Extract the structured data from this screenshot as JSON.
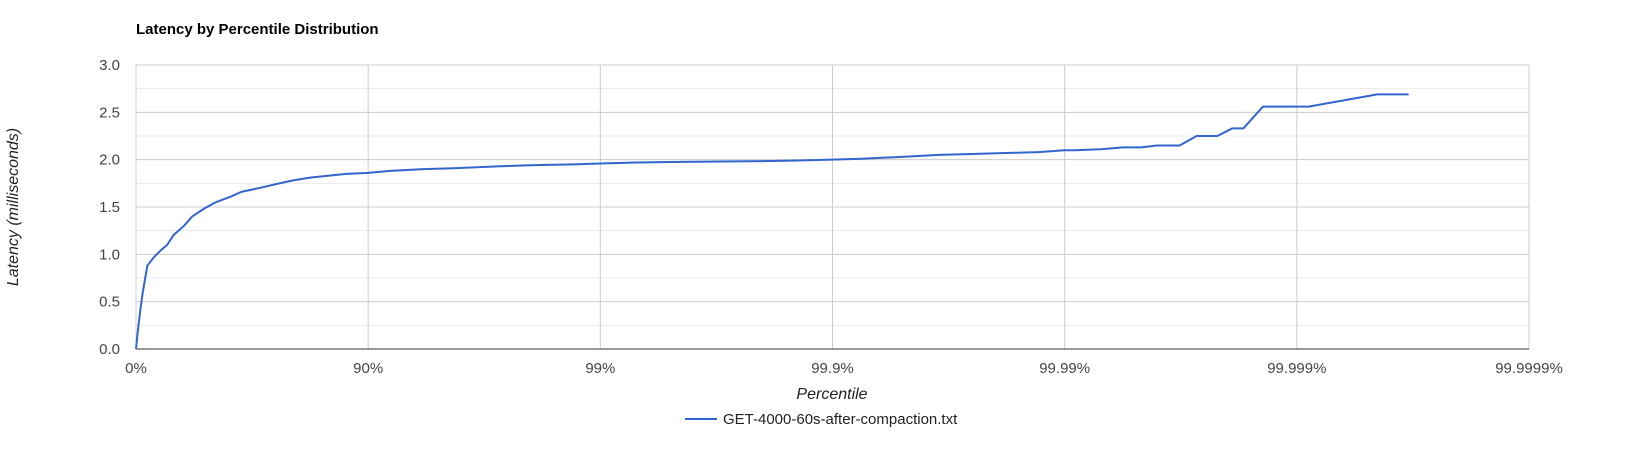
{
  "colors": {
    "series": "#3366cc",
    "major_grid": "#cccccc",
    "minor_grid": "#ebebeb",
    "baseline": "#333333"
  },
  "chart_data": {
    "type": "line",
    "title": "Latency by Percentile Distribution",
    "xlabel": "Percentile",
    "ylabel": "Latency (milliseconds)",
    "x_scale": "log10 of 1/(1 - percentile)",
    "x_ticks": [
      "0%",
      "90%",
      "99%",
      "99.9%",
      "99.99%",
      "99.999%",
      "99.9999%"
    ],
    "y_ticks": [
      "0.0",
      "0.5",
      "1.0",
      "1.5",
      "2.0",
      "2.5",
      "3.0"
    ],
    "ylim": [
      0,
      3
    ],
    "grid": true,
    "legend_position": "bottom",
    "series": [
      {
        "name": "GET-4000-60s-after-compaction.txt",
        "x_percentile": [
          "0%",
          "2.1%",
          "4.3%",
          "6.5%",
          "8.6%",
          "10.6%",
          "16.3%",
          "21.6%",
          "26.6%",
          "30.9%",
          "37.8%",
          "42.8%",
          "48.9%",
          "54.6%",
          "61.0%",
          "64.8%",
          "70.5%",
          "74.9%",
          "78.8%",
          "82.2%",
          "85.1%",
          "87.6%",
          "90%",
          "91.8%",
          "94.2%",
          "95.7%",
          "96.6%",
          "97.3%",
          "97.9%",
          "98.3%",
          "98.7%",
          "99%",
          "99.3%",
          "99.5%",
          "99.7%",
          "99.8%",
          "99.85%",
          "99.9%",
          "99.925%",
          "99.95%",
          "99.965%",
          "99.975%",
          "99.982%",
          "99.987%",
          "99.99%",
          "99.991%",
          "99.993%",
          "99.9944%",
          "99.9953%",
          "99.996%",
          "99.9968%",
          "99.9973%",
          "99.9978%",
          "99.9981%",
          "99.9983%",
          "99.9986%",
          "99.9988%",
          "99.999%",
          "99.99911%",
          "99.99955%",
          "99.99967%"
        ],
        "y_ms": [
          0.0,
          0.22,
          0.42,
          0.6,
          0.74,
          0.88,
          0.97,
          1.04,
          1.1,
          1.2,
          1.3,
          1.4,
          1.48,
          1.55,
          1.61,
          1.66,
          1.7,
          1.74,
          1.78,
          1.81,
          1.83,
          1.85,
          1.86,
          1.88,
          1.9,
          1.91,
          1.92,
          1.93,
          1.94,
          1.945,
          1.95,
          1.96,
          1.97,
          1.975,
          1.98,
          1.985,
          1.99,
          2.0,
          2.01,
          2.03,
          2.05,
          2.06,
          2.07,
          2.08,
          2.1,
          2.1,
          2.11,
          2.13,
          2.13,
          2.15,
          2.15,
          2.25,
          2.25,
          2.33,
          2.33,
          2.56,
          2.56,
          2.56,
          2.56,
          2.69,
          2.69
        ]
      }
    ]
  }
}
